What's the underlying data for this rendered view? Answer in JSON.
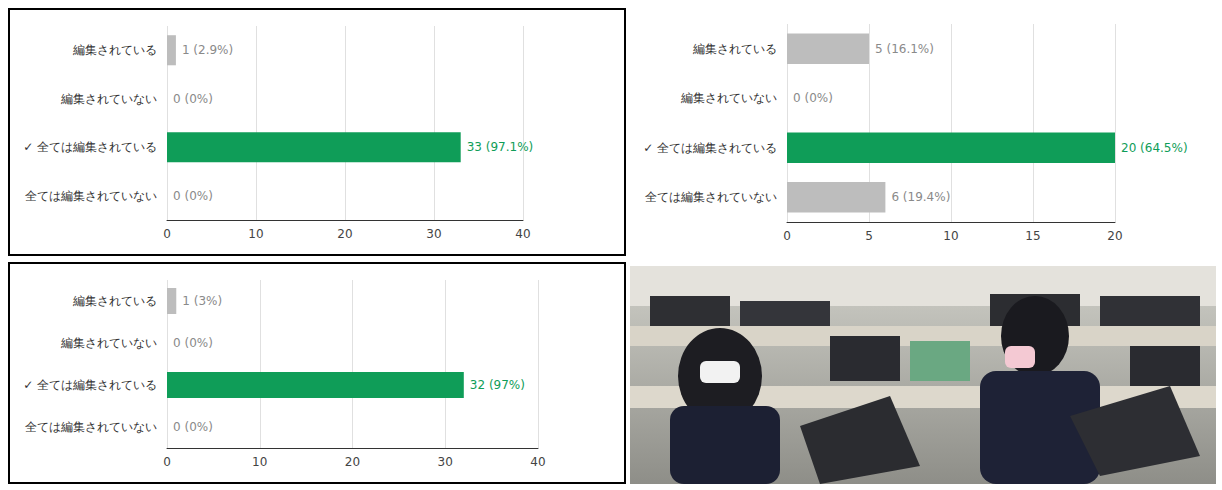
{
  "chart_data": [
    {
      "type": "bar",
      "orientation": "horizontal",
      "categories": [
        "編集されている",
        "編集されていない",
        "✓ 全ては編集されている",
        "全ては編集されていない"
      ],
      "values": [
        1,
        0,
        33,
        0
      ],
      "value_labels": [
        "1 (2.9%)",
        "0 (0%)",
        "33 (97.1%)",
        "0 (0%)"
      ],
      "colors": [
        "#bdbdbd",
        "#bdbdbd",
        "#0f9d58",
        "#bdbdbd"
      ],
      "xlim": [
        0,
        40
      ],
      "xticks": [
        0,
        10,
        20,
        30,
        40
      ],
      "grid": true,
      "data_labels": true
    },
    {
      "type": "bar",
      "orientation": "horizontal",
      "categories": [
        "編集されている",
        "編集されていない",
        "✓ 全ては編集されている",
        "全ては編集されていない"
      ],
      "values": [
        5,
        0,
        20,
        6
      ],
      "value_labels": [
        "5 (16.1%)",
        "0 (0%)",
        "20 (64.5%)",
        "6 (19.4%)"
      ],
      "colors": [
        "#bdbdbd",
        "#bdbdbd",
        "#0f9d58",
        "#bdbdbd"
      ],
      "xlim": [
        0,
        20
      ],
      "xticks": [
        0,
        5,
        10,
        15,
        20
      ],
      "grid": true,
      "data_labels": true
    },
    {
      "type": "bar",
      "orientation": "horizontal",
      "categories": [
        "編集されている",
        "編集されていない",
        "✓ 全ては編集されている",
        "全ては編集されていない"
      ],
      "values": [
        1,
        0,
        32,
        0
      ],
      "value_labels": [
        "1 (3%)",
        "0 (0%)",
        "32 (97%)",
        "0 (0%)"
      ],
      "colors": [
        "#bdbdbd",
        "#bdbdbd",
        "#0f9d58",
        "#bdbdbd"
      ],
      "xlim": [
        0,
        40
      ],
      "xticks": [
        0,
        10,
        20,
        30,
        40
      ],
      "grid": true,
      "data_labels": true
    }
  ]
}
